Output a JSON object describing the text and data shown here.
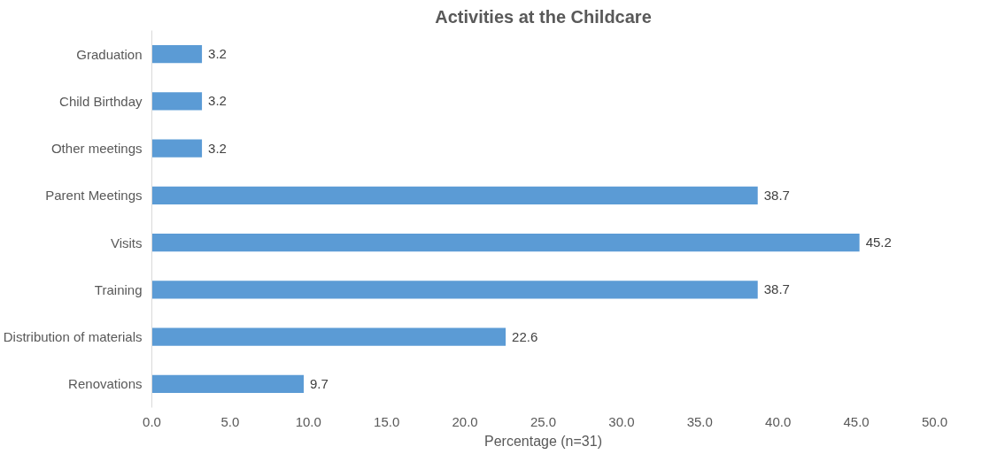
{
  "chart_data": {
    "type": "bar",
    "orientation": "horizontal",
    "title": "Activities at the Childcare",
    "xlabel": "Percentage (n=31)",
    "categories": [
      "Graduation",
      "Child Birthday",
      "Other meetings",
      "Parent Meetings",
      "Visits",
      "Training",
      "Distribution of materials",
      "Renovations"
    ],
    "values": [
      3.2,
      3.2,
      3.2,
      38.7,
      45.2,
      38.7,
      22.6,
      9.7
    ],
    "color": "#5b9bd5",
    "data_labels": true,
    "grid": false,
    "xlim": [
      0,
      50
    ],
    "xticks": [
      {
        "value": 0,
        "label": "0.0"
      },
      {
        "value": 5,
        "label": "5.0"
      },
      {
        "value": 10,
        "label": "10.0"
      },
      {
        "value": 15,
        "label": "15.0"
      },
      {
        "value": 20,
        "label": "20.0"
      },
      {
        "value": 25,
        "label": "25.0"
      },
      {
        "value": 30,
        "label": "30.0"
      },
      {
        "value": 35,
        "label": "35.0"
      },
      {
        "value": 40,
        "label": "40.0"
      },
      {
        "value": 45,
        "label": "45.0"
      },
      {
        "value": 50,
        "label": "50.0"
      }
    ]
  }
}
